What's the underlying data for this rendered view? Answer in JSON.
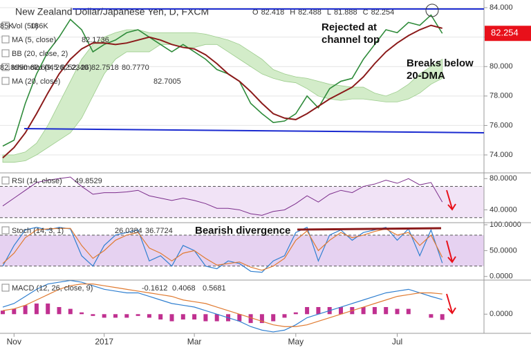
{
  "chart_data": [
    {
      "type": "line",
      "title": "New Zealand Dollar/Japanese Yen, D, FXCM",
      "ohlc": [
        {
          "label": "O",
          "value": 82.418
        },
        {
          "label": "H",
          "value": 82.488
        },
        {
          "label": "L",
          "value": 81.888
        },
        {
          "label": "C",
          "value": 82.254
        }
      ],
      "indicators": [
        {
          "name": "Vol (50)",
          "readings": [
            "85K",
            "186K"
          ]
        },
        {
          "name": "MA (5, close)",
          "readings": [
            "82.1736"
          ]
        },
        {
          "name": "BB (20, close, 2)",
          "readings": []
        },
        {
          "name": "Ichimoku (9, 26, 52, 26)",
          "readings": [
            "82.8990",
            "82.6045",
            "82.2340",
            "82.7518",
            "80.7770"
          ]
        },
        {
          "name": "MA (20, close)",
          "readings": [
            "82.7005"
          ]
        }
      ],
      "annotations": [
        {
          "lines": [
            "Rejected at",
            "channel top"
          ]
        },
        {
          "lines": [
            "Breaks below",
            "20-DMA"
          ]
        }
      ],
      "last": 82.254,
      "last_color": "#e8101a",
      "ylim": [
        72.78,
        84.52
      ],
      "yticks": [
        {
          "value": 84,
          "label": "84.000"
        },
        {
          "value": 82,
          "label": "82.000"
        },
        {
          "value": 80,
          "label": "80.000"
        },
        {
          "value": 78,
          "label": "78.000"
        },
        {
          "value": 76,
          "label": "76.000"
        },
        {
          "value": 74,
          "label": "74.000"
        }
      ],
      "grid": true,
      "cloud": {
        "color": "#d3ecc9",
        "upper": [
          74.0,
          74.0,
          74.2,
          74.8,
          76.0,
          77.5,
          79.0,
          80.5,
          81.5,
          82.0,
          82.3,
          82.5,
          82.5,
          82.3,
          82.3,
          82.3,
          82.3,
          82.3,
          82.2,
          82.0,
          81.8,
          81.5,
          81.0,
          80.5,
          79.8,
          79.5,
          79.3,
          79.2,
          79.0,
          78.8,
          78.7,
          78.6,
          78.6,
          78.2,
          78.0,
          78.3,
          78.8,
          79.5,
          80.0,
          80.5
        ],
        "lower": [
          73.5,
          73.5,
          73.6,
          74.0,
          74.5,
          75.0,
          75.5,
          76.5,
          78.0,
          79.5,
          80.5,
          81.0,
          81.0,
          81.0,
          81.5,
          81.5,
          81.3,
          81.3,
          81.5,
          81.5,
          81.0,
          80.5,
          80.0,
          79.5,
          79.2,
          79.0,
          78.9,
          78.5,
          78.0,
          77.8,
          77.7,
          77.8,
          77.8,
          77.7,
          77.6,
          77.6,
          77.8,
          78.2,
          78.8,
          79.2
        ]
      },
      "series": [
        {
          "type": "line",
          "color": "#2e8b3a",
          "width": 1.6,
          "values": [
            74.6,
            75.0,
            77.5,
            79.5,
            81.0,
            82.0,
            83.2,
            82.5,
            81.0,
            81.5,
            81.8,
            82.3,
            82.5,
            82.0,
            81.5,
            81.0,
            81.5,
            81.0,
            80.5,
            79.8,
            79.5,
            79.0,
            77.5,
            76.8,
            76.2,
            76.3,
            76.8,
            78.0,
            77.2,
            78.5,
            79.0,
            79.2,
            80.5,
            81.5,
            82.5,
            82.3,
            83.0,
            82.8,
            83.5,
            82.254
          ]
        },
        {
          "type": "line",
          "color": "#8b1a1a",
          "width": 2,
          "values": [
            73.8,
            74.5,
            75.5,
            76.8,
            78.2,
            79.5,
            80.5,
            81.2,
            81.6,
            81.6,
            81.5,
            81.6,
            81.8,
            82.0,
            81.8,
            81.5,
            81.3,
            81.2,
            80.8,
            80.2,
            79.5,
            79.0,
            78.3,
            77.5,
            76.8,
            76.5,
            76.4,
            76.8,
            77.3,
            77.8,
            78.2,
            78.6,
            79.3,
            80.2,
            81.0,
            81.6,
            82.1,
            82.5,
            82.8,
            82.6
          ]
        }
      ]
    },
    {
      "type": "line",
      "indicators": [
        {
          "name": "RSI (14, close)",
          "readings": [
            "49.8529"
          ]
        }
      ],
      "ylim": [
        23.6,
        87.3
      ],
      "yticks": [
        {
          "value": 80,
          "label": "80.0000"
        },
        {
          "value": 40,
          "label": "40.0000"
        }
      ],
      "band": [
        30,
        70
      ],
      "band_color": "#f1e3f6",
      "series": [
        {
          "type": "line",
          "color": "#7b2d8b",
          "width": 1,
          "values": [
            45,
            55,
            65,
            75,
            78,
            80,
            82,
            70,
            60,
            62,
            62,
            63,
            65,
            58,
            55,
            52,
            55,
            52,
            48,
            42,
            42,
            40,
            35,
            33,
            38,
            40,
            48,
            58,
            50,
            60,
            65,
            62,
            70,
            73,
            78,
            74,
            80,
            72,
            75,
            50
          ]
        }
      ]
    },
    {
      "type": "line",
      "indicators": [
        {
          "name": "Stoch (14, 3, 1)",
          "readings": [
            "26.0384",
            "36.7724"
          ]
        }
      ],
      "annotations": [
        {
          "lines": [
            "Bearish divergence"
          ]
        }
      ],
      "ylim": [
        -7,
        104
      ],
      "yticks": [
        {
          "value": 100,
          "label": "100.0000"
        },
        {
          "value": 50,
          "label": "50.0000"
        },
        {
          "value": 0,
          "label": "0.0000"
        }
      ],
      "band": [
        20,
        80
      ],
      "band_color": "#e6d2f1",
      "series": [
        {
          "type": "line",
          "color": "#2f7fd0",
          "width": 1.2,
          "values": [
            20,
            60,
            90,
            95,
            90,
            95,
            92,
            40,
            20,
            60,
            80,
            85,
            90,
            30,
            40,
            20,
            60,
            50,
            20,
            15,
            30,
            25,
            10,
            8,
            30,
            40,
            85,
            95,
            30,
            80,
            90,
            70,
            85,
            90,
            95,
            70,
            92,
            40,
            90,
            26
          ]
        },
        {
          "type": "line",
          "color": "#e07a30",
          "width": 1.2,
          "values": [
            25,
            45,
            75,
            90,
            92,
            93,
            93,
            60,
            35,
            50,
            70,
            80,
            85,
            55,
            45,
            30,
            45,
            50,
            35,
            22,
            25,
            28,
            18,
            12,
            20,
            35,
            70,
            88,
            50,
            70,
            85,
            75,
            80,
            87,
            92,
            80,
            85,
            60,
            80,
            37
          ]
        }
      ]
    },
    {
      "type": "line",
      "indicators": [
        {
          "name": "MACD (12, 26, close, 9)",
          "readings": [
            "-0.1612",
            "0.4068",
            "0.5681"
          ]
        }
      ],
      "ylim": [
        -0.54,
        0.96
      ],
      "yticks": [
        {
          "value": 0,
          "label": "0.0000"
        }
      ],
      "categories": [
        null,
        "Nov",
        null,
        null,
        null,
        null,
        null,
        null,
        null,
        "2017",
        null,
        null,
        null,
        null,
        null,
        null,
        null,
        "Mar",
        null,
        null,
        null,
        null,
        null,
        null,
        null,
        null,
        "May",
        null,
        null,
        null,
        null,
        null,
        null,
        null,
        null,
        "Jul",
        null,
        null,
        null,
        null
      ],
      "series": [
        {
          "type": "bar",
          "color": "#c03090",
          "values": [
            0.1,
            0.15,
            0.25,
            0.3,
            0.3,
            0.2,
            0.15,
            0.05,
            -0.05,
            -0.1,
            -0.1,
            -0.1,
            -0.05,
            -0.1,
            -0.15,
            -0.2,
            -0.15,
            -0.15,
            -0.2,
            -0.2,
            -0.2,
            -0.2,
            -0.25,
            -0.25,
            -0.2,
            -0.1,
            0.05,
            0.2,
            0.2,
            0.2,
            0.2,
            0.2,
            0.2,
            0.2,
            0.2,
            0.15,
            0.15,
            0,
            -0.1,
            -0.16
          ]
        },
        {
          "type": "line",
          "color": "#2f7fd0",
          "width": 1.2,
          "values": [
            0.2,
            0.3,
            0.5,
            0.7,
            0.85,
            0.9,
            0.95,
            0.9,
            0.8,
            0.7,
            0.65,
            0.6,
            0.6,
            0.5,
            0.4,
            0.3,
            0.25,
            0.2,
            0.1,
            0,
            -0.1,
            -0.2,
            -0.35,
            -0.45,
            -0.5,
            -0.45,
            -0.3,
            -0.1,
            0,
            0.1,
            0.2,
            0.3,
            0.4,
            0.5,
            0.6,
            0.65,
            0.7,
            0.6,
            0.5,
            0.41
          ]
        },
        {
          "type": "line",
          "color": "#e07a30",
          "width": 1.2,
          "values": [
            0.1,
            0.15,
            0.25,
            0.4,
            0.55,
            0.7,
            0.8,
            0.85,
            0.85,
            0.8,
            0.75,
            0.7,
            0.65,
            0.6,
            0.55,
            0.5,
            0.4,
            0.35,
            0.3,
            0.2,
            0.1,
            0,
            -0.1,
            -0.2,
            -0.3,
            -0.35,
            -0.35,
            -0.3,
            -0.2,
            -0.1,
            0,
            0.1,
            0.2,
            0.3,
            0.4,
            0.5,
            0.55,
            0.6,
            0.6,
            0.57
          ]
        }
      ]
    }
  ]
}
